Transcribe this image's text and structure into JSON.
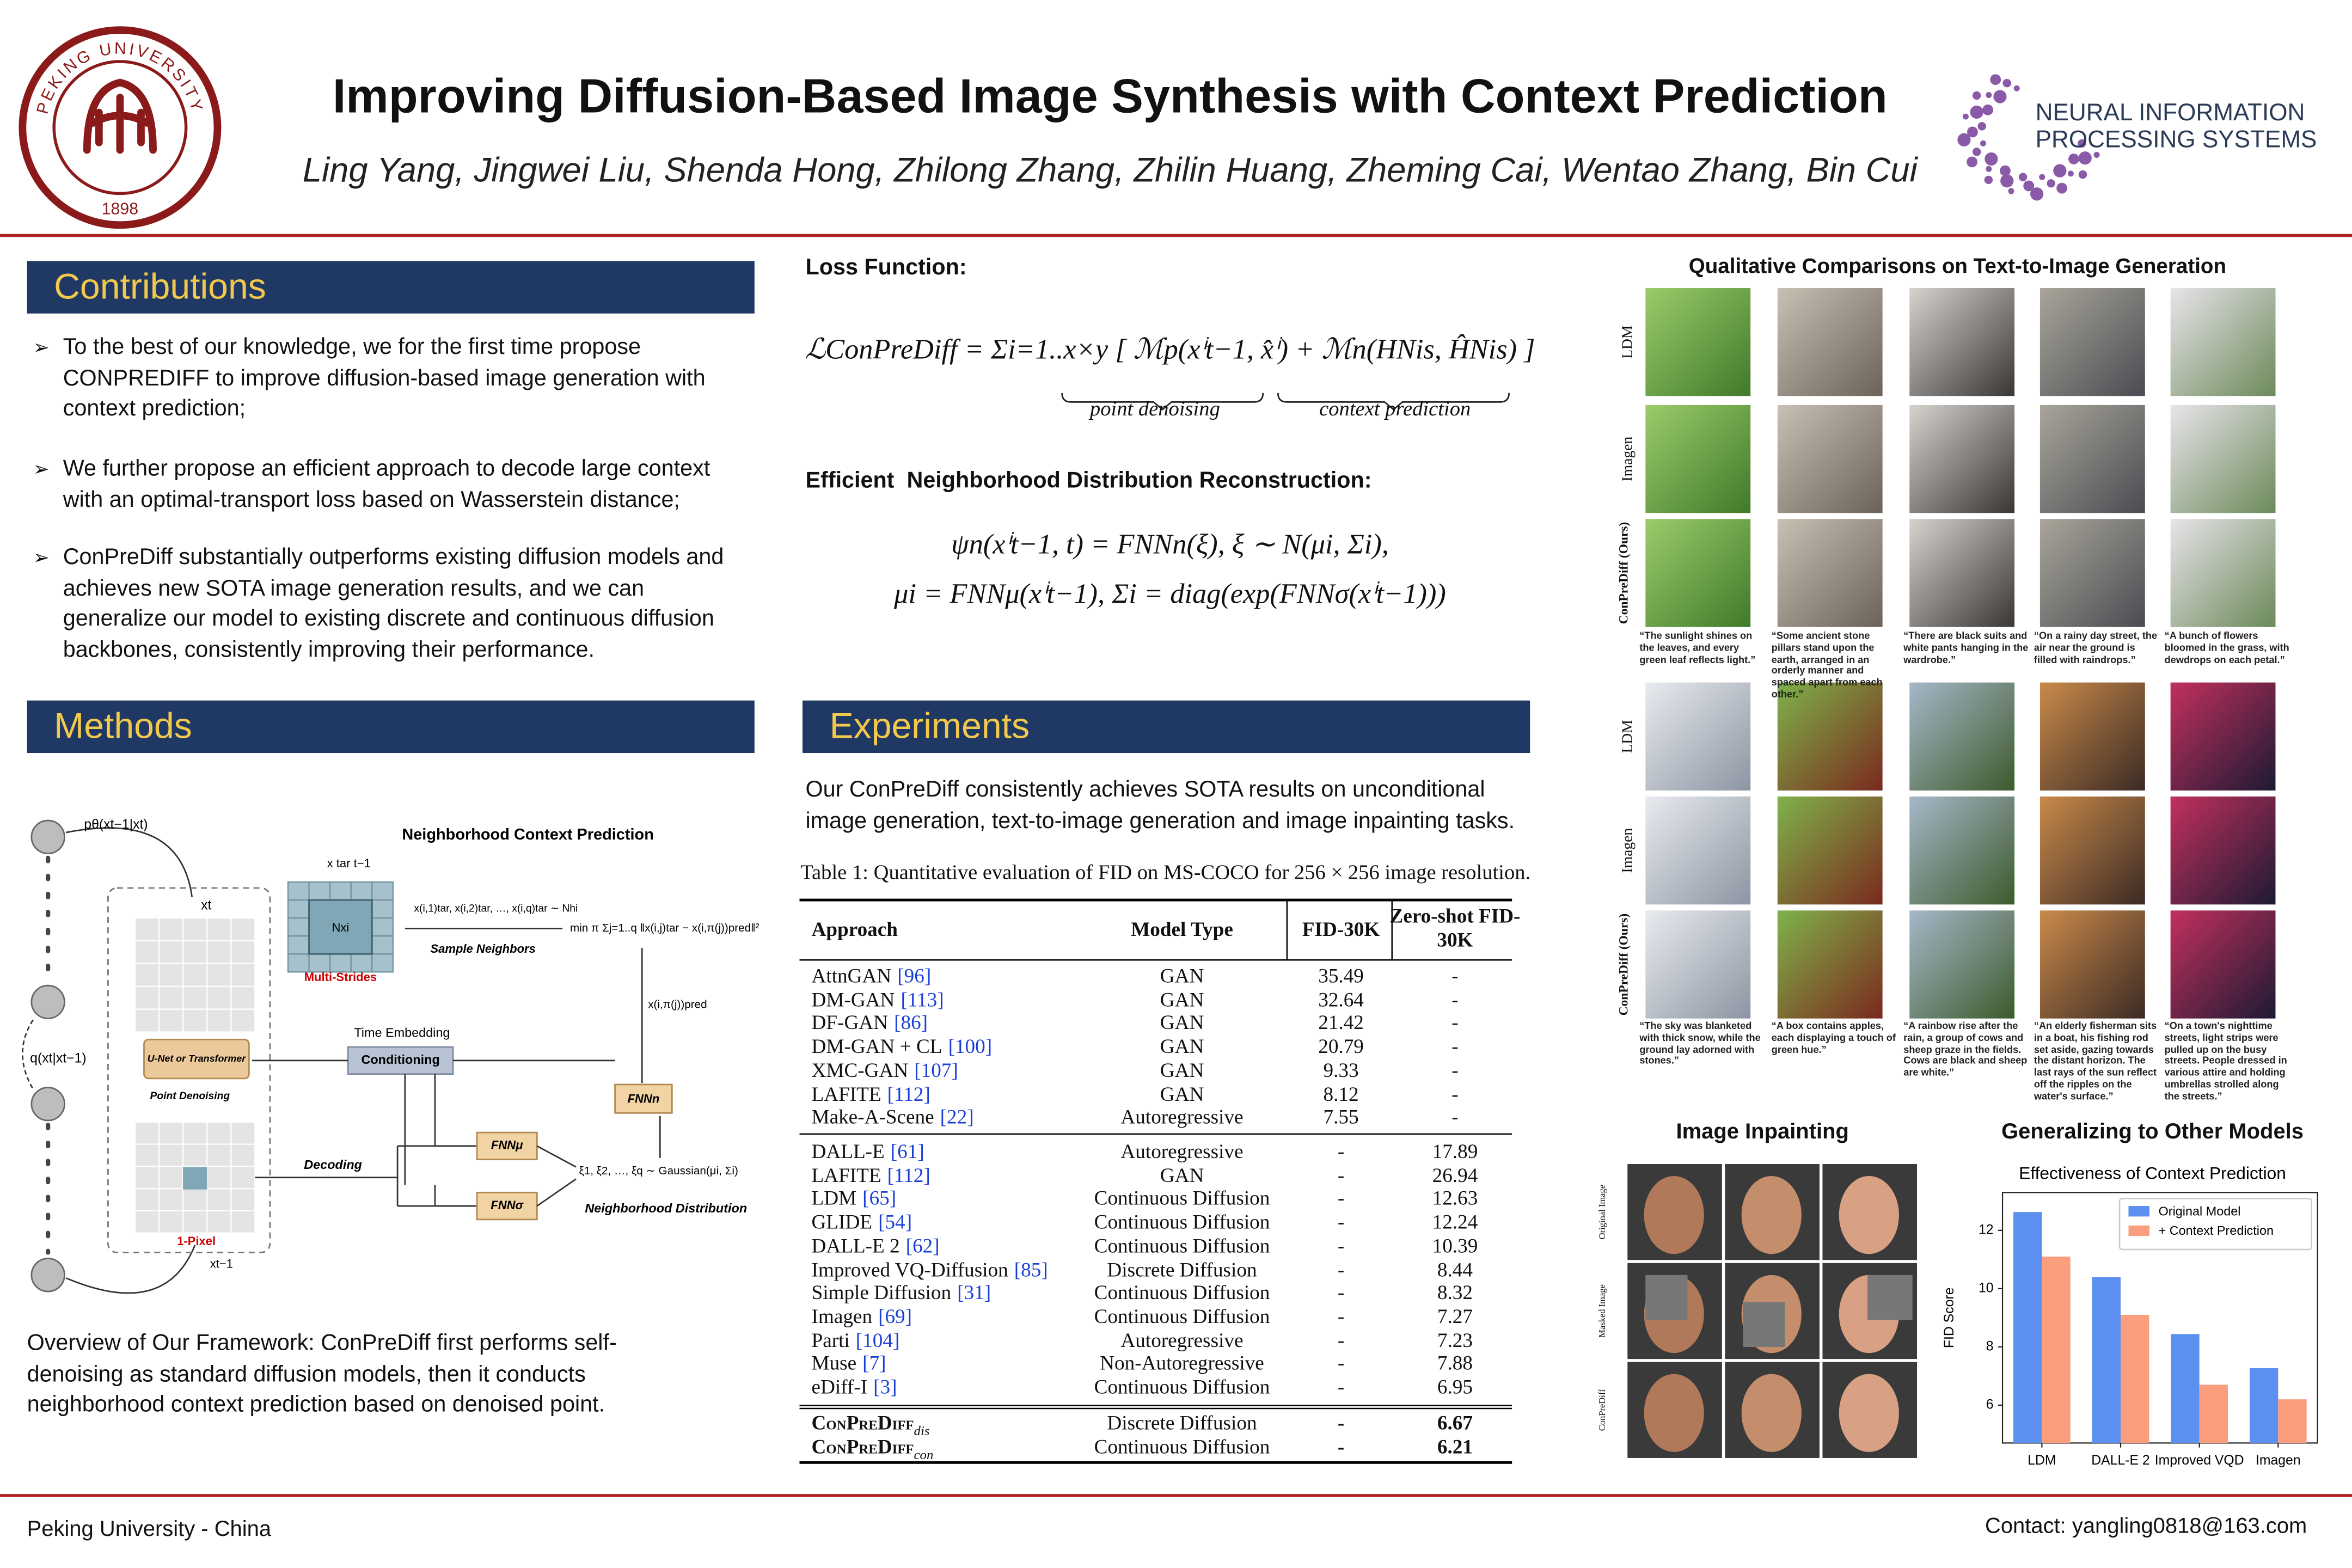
{
  "header": {
    "title": "Improving Diffusion-Based Image Synthesis with Context Prediction",
    "authors": "Ling Yang, Jingwei Liu, Shenda Hong, Zhilong Zhang, Zhilin Huang, Zheming Cai, Wentao Zhang, Bin Cui",
    "logo_left_text": "PEKING UNIVERSITY",
    "logo_left_year": "1898",
    "logo_right_text": [
      "NEURAL INFORMATION",
      "PROCESSING SYSTEMS"
    ]
  },
  "contributions": {
    "heading": "Contributions",
    "bullets": [
      "To the best of our knowledge, we for the first time propose CONPREDIFF to improve diffusion-based image generation with context prediction;",
      "We further propose an efficient approach to decode large context with an optimal-transport loss based on Wasserstein distance;",
      "ConPreDiff substantially outperforms existing diffusion models and achieves new SOTA image generation results, and we can generalize our model to existing discrete and continuous diffusion backbones, consistently improving their performance."
    ]
  },
  "methods": {
    "heading": "Methods",
    "diagram": {
      "p_label": "pθ(xt−1|xt)",
      "q_label": "q(xt|xt−1)",
      "xt": "xt",
      "xt1": "xt−1",
      "unet": "U-Net or Transformer",
      "point_denoising": "Point Denoising",
      "one_pixel": "1-Pixel",
      "ncp_title": "Neighborhood Context Prediction",
      "xtar": "x tar t−1",
      "nxi": "Nxi",
      "multi_strides": "Multi-Strides",
      "neighbors": "x(i,1)tar, x(i,2)tar, …, x(i,q)tar ∼ Nhi",
      "sample_neighbors": "Sample Neighbors",
      "min_formula": "min π Σj=1..q ‖x(i,j)tar − x(i,π(j))pred‖²",
      "xpred": "x(i,π(j))pred",
      "time_embedding": "Time Embedding",
      "conditioning": "Conditioning",
      "decoding": "Decoding",
      "fnn_n": "FNNn",
      "fnn_mu": "FNNμ",
      "fnn_sigma": "FNNσ",
      "xi": "ξ1, ξ2, …, ξq ∼ Gaussian(μi, Σi)",
      "nd": "Neighborhood Distribution"
    },
    "caption": "Overview of Our Framework: ConPreDiff  first performs self-denoising as standard diffusion models, then it conducts neighborhood context prediction based on denoised point."
  },
  "loss": {
    "heading": "Loss Function:",
    "equation": "ℒConPreDiff = Σi=1..x×y [ ℳp(xⁱt−1, x̂ⁱ) + ℳn(HNis, ĤNis) ]",
    "under_left": "point denoising",
    "under_right": "context prediction"
  },
  "reconstruction": {
    "heading": "Efficient  Neighborhood Distribution Reconstruction:",
    "equations": [
      "ψn(xⁱt−1, t) = FNNn(ξ), ξ ∼ N(μi, Σi),",
      "μi = FNNμ(xⁱt−1), Σi = diag(exp(FNNσ(xⁱt−1)))"
    ]
  },
  "experiments": {
    "heading": "Experiments",
    "text": "Our ConPreDiff consistently achieves SOTA results on unconditional image generation, text-to-image generation and image inpainting tasks.",
    "table": {
      "caption": "Table 1: Quantitative evaluation of FID on MS-COCO for 256 × 256 image resolution.",
      "columns": [
        "Approach",
        "Model Type",
        "FID-30K",
        "Zero-shot FID-30K"
      ],
      "groups": [
        [
          {
            "approach": "AttnGAN",
            "ref": "[96]",
            "type": "GAN",
            "fid": "35.49",
            "zero_shot": "-"
          },
          {
            "approach": "DM-GAN",
            "ref": "[113]",
            "type": "GAN",
            "fid": "32.64",
            "zero_shot": "-"
          },
          {
            "approach": "DF-GAN",
            "ref": "[86]",
            "type": "GAN",
            "fid": "21.42",
            "zero_shot": "-"
          },
          {
            "approach": "DM-GAN + CL",
            "ref": "[100]",
            "type": "GAN",
            "fid": "20.79",
            "zero_shot": "-"
          },
          {
            "approach": "XMC-GAN",
            "ref": "[107]",
            "type": "GAN",
            "fid": "9.33",
            "zero_shot": "-"
          },
          {
            "approach": "LAFITE",
            "ref": "[112]",
            "type": "GAN",
            "fid": "8.12",
            "zero_shot": "-"
          },
          {
            "approach": "Make-A-Scene",
            "ref": "[22]",
            "type": "Autoregressive",
            "fid": "7.55",
            "zero_shot": "-"
          }
        ],
        [
          {
            "approach": "DALL-E",
            "ref": "[61]",
            "type": "Autoregressive",
            "fid": "-",
            "zero_shot": "17.89"
          },
          {
            "approach": "LAFITE",
            "ref": "[112]",
            "type": "GAN",
            "fid": "-",
            "zero_shot": "26.94"
          },
          {
            "approach": "LDM",
            "ref": "[65]",
            "type": "Continuous Diffusion",
            "fid": "-",
            "zero_shot": "12.63"
          },
          {
            "approach": "GLIDE",
            "ref": "[54]",
            "type": "Continuous Diffusion",
            "fid": "-",
            "zero_shot": "12.24"
          },
          {
            "approach": "DALL-E 2",
            "ref": "[62]",
            "type": "Continuous Diffusion",
            "fid": "-",
            "zero_shot": "10.39"
          },
          {
            "approach": "Improved VQ-Diffusion",
            "ref": "[85]",
            "type": "Discrete Diffusion",
            "fid": "-",
            "zero_shot": "8.44"
          },
          {
            "approach": "Simple Diffusion",
            "ref": "[31]",
            "type": "Continuous Diffusion",
            "fid": "-",
            "zero_shot": "8.32"
          },
          {
            "approach": "Imagen",
            "ref": "[69]",
            "type": "Continuous Diffusion",
            "fid": "-",
            "zero_shot": "7.27"
          },
          {
            "approach": "Parti",
            "ref": "[104]",
            "type": "Autoregressive",
            "fid": "-",
            "zero_shot": "7.23"
          },
          {
            "approach": "Muse",
            "ref": "[7]",
            "type": "Non-Autoregressive",
            "fid": "-",
            "zero_shot": "7.88"
          },
          {
            "approach": "eDiff-I",
            "ref": "[3]",
            "type": "Continuous Diffusion",
            "fid": "-",
            "zero_shot": "6.95"
          }
        ],
        [
          {
            "approach": "ConPreDiff",
            "sub": "dis",
            "type": "Discrete Diffusion",
            "fid": "-",
            "zero_shot": "6.67"
          },
          {
            "approach": "ConPreDiff",
            "sub": "con",
            "type": "Continuous Diffusion",
            "fid": "-",
            "zero_shot": "6.21"
          }
        ]
      ]
    }
  },
  "qualitative": {
    "heading": "Qualitative Comparisons on Text-to-Image Generation",
    "row_labels": [
      "LDM",
      "Imagen",
      "ConPreDiff (Ours)"
    ],
    "captions": [
      [
        "“The sunlight shines on the leaves, and every green leaf reflects light.”",
        "“Some ancient stone pillars stand upon the earth, arranged in an orderly manner and spaced apart from each other.”",
        "“There are black suits and white pants hanging in the wardrobe.”",
        "“On a rainy day street, the air near the ground is filled with raindrops.”",
        "“A bunch of flowers bloomed in the grass, with dewdrops on each petal.”"
      ],
      [
        "“The sky was blanketed with thick snow, while the ground lay adorned with stones.”",
        "“A box contains apples, each displaying a touch of green hue.”",
        "“A rainbow rise after the rain, a group of cows and sheep graze in the fields. Cows are black and sheep are white.”",
        "“An elderly fisherman sits in a boat, his fishing rod set aside, gazing towards the distant horizon. The last rays of the sun reflect off the ripples on the water's surface.”",
        "“On a town's nighttime streets, light strips were pulled up on the busy streets. People dressed in various attire and holding umbrellas strolled along the streets.”"
      ]
    ]
  },
  "inpainting": {
    "heading": "Image Inpainting",
    "row_labels": [
      "Original Image",
      "Masked Image",
      "ConPreDiff"
    ]
  },
  "generalizing": {
    "heading": "Generalizing to Other Models"
  },
  "chart_data": {
    "type": "bar",
    "title": "Effectiveness of Context Prediction",
    "y_label": "FID Score",
    "categories": [
      "LDM",
      "DALL-E 2",
      "Improved VQD",
      "Imagen"
    ],
    "series": [
      {
        "name": "Original Model",
        "color": "#5b8ff0",
        "values": [
          12.63,
          10.39,
          8.44,
          7.27
        ]
      },
      {
        "name": "+ Context Prediction",
        "color": "#fa9e7e",
        "values": [
          11.1,
          9.1,
          6.7,
          6.2
        ]
      }
    ],
    "ylim": [
      4.7,
      13.3
    ],
    "yticks": [
      6,
      8,
      10,
      12
    ],
    "legend": "upper-right",
    "grid": false
  },
  "footer": {
    "left": "Peking University - China",
    "right": "Contact: yangling0818@163.com"
  }
}
